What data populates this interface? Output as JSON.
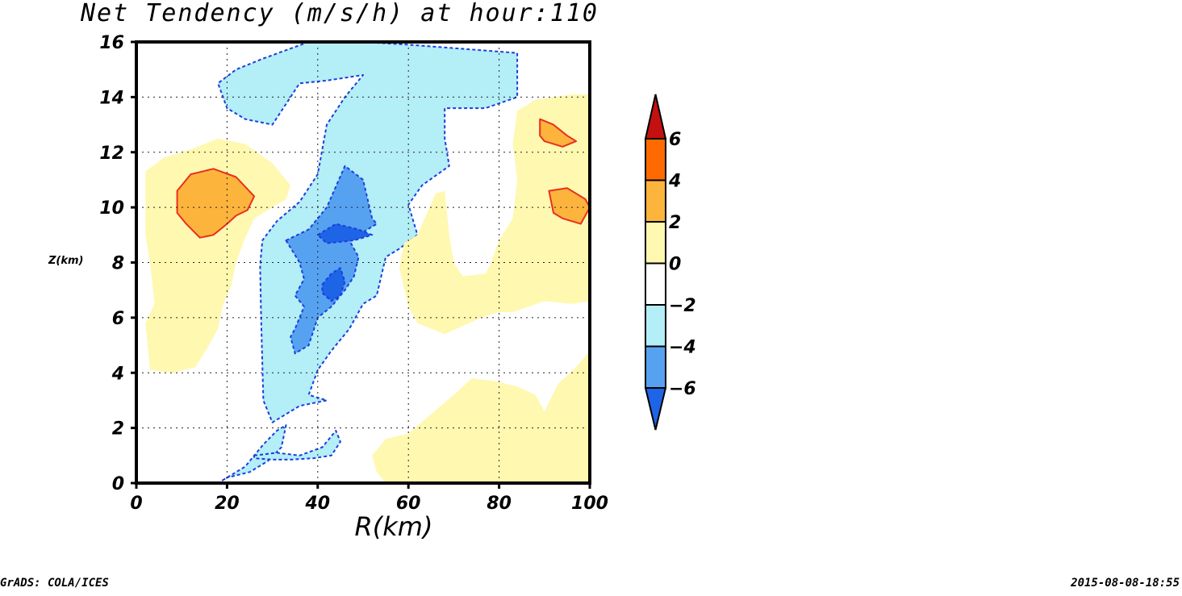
{
  "chart_data": {
    "type": "contour",
    "title": "Net Tendency (m/s/h) at hour:110",
    "xlabel": "R(km)",
    "ylabel": "Z(km)",
    "xlim": [
      0,
      100
    ],
    "ylim": [
      0,
      16
    ],
    "xticks": [
      "0",
      "20",
      "40",
      "60",
      "80",
      "100"
    ],
    "yticks": [
      "0",
      "2",
      "4",
      "6",
      "8",
      "10",
      "12",
      "14",
      "16"
    ],
    "grid": true,
    "colorbar": {
      "labels": [
        "6",
        "4",
        "2",
        "0",
        "−2",
        "−4",
        "−6"
      ],
      "bins": [
        {
          "range": ">6",
          "color": "#c41010"
        },
        {
          "range": "4 to 6",
          "color": "#ff6a00"
        },
        {
          "range": "2 to 4",
          "color": "#fcb43c"
        },
        {
          "range": "0 to 2",
          "color": "#fff8b0"
        },
        {
          "range": "-2 to 0",
          "color": "#ffffff"
        },
        {
          "range": "-4 to -2",
          "color": "#b4eef6"
        },
        {
          "range": "-6 to -4",
          "color": "#56a2f0"
        },
        {
          "range": "<-6",
          "color": "#1e64e6"
        }
      ]
    },
    "regions": [
      {
        "name": "upper-negative-plume",
        "level": "-4 to -2",
        "color": "#b4eef6",
        "points": [
          [
            38,
            16
          ],
          [
            50,
            16
          ],
          [
            60,
            15.9
          ],
          [
            84,
            15.6
          ],
          [
            84,
            14
          ],
          [
            77,
            13.6
          ],
          [
            68,
            13.6
          ],
          [
            68,
            12.5
          ],
          [
            69,
            11.5
          ],
          [
            63,
            10.8
          ],
          [
            60,
            10.1
          ],
          [
            62,
            9
          ],
          [
            58,
            8.5
          ],
          [
            55,
            8.2
          ],
          [
            53,
            6.8
          ],
          [
            50,
            6.5
          ],
          [
            47,
            5.6
          ],
          [
            43,
            4.8
          ],
          [
            40,
            4.1
          ],
          [
            38,
            3.2
          ],
          [
            42,
            3
          ],
          [
            36,
            2.8
          ],
          [
            33,
            2.5
          ],
          [
            30,
            2.2
          ],
          [
            28,
            3
          ],
          [
            27.5,
            6
          ],
          [
            27.3,
            7.9
          ],
          [
            27.8,
            8.8
          ],
          [
            31,
            9.5
          ],
          [
            36,
            10.2
          ],
          [
            40,
            11.2
          ],
          [
            42,
            13
          ],
          [
            46,
            14
          ],
          [
            50,
            14.8
          ],
          [
            42,
            14.6
          ],
          [
            36,
            14.5
          ],
          [
            30,
            13
          ],
          [
            24,
            13.2
          ],
          [
            20,
            13.6
          ],
          [
            18,
            14.5
          ],
          [
            22,
            15
          ],
          [
            28,
            15.4
          ]
        ]
      },
      {
        "name": "mid-negative-core",
        "level": "-6 to -4",
        "color": "#56a2f0",
        "points": [
          [
            33,
            8.8
          ],
          [
            38,
            9.2
          ],
          [
            42,
            10
          ],
          [
            46,
            11.5
          ],
          [
            50,
            11
          ],
          [
            52,
            9.6
          ],
          [
            53,
            9.4
          ],
          [
            47,
            8.8
          ],
          [
            49,
            8.2
          ],
          [
            48,
            7.5
          ],
          [
            46,
            7
          ],
          [
            43,
            6.4
          ],
          [
            40,
            6
          ],
          [
            38,
            5
          ],
          [
            35,
            4.7
          ],
          [
            34,
            5.3
          ],
          [
            35,
            5.6
          ],
          [
            37,
            6.4
          ],
          [
            35,
            6.8
          ],
          [
            37,
            7.4
          ],
          [
            36,
            8
          ]
        ]
      },
      {
        "name": "mid-strong-core",
        "level": "<-6",
        "color": "#1e64e6",
        "points": [
          [
            40,
            9
          ],
          [
            44,
            9.4
          ],
          [
            49,
            9.2
          ],
          [
            52,
            9
          ],
          [
            48,
            8.8
          ],
          [
            42,
            8.7
          ]
        ]
      },
      {
        "name": "lower-strong-core",
        "level": "<-6",
        "color": "#1e64e6",
        "points": [
          [
            41,
            7.2
          ],
          [
            43,
            7.6
          ],
          [
            45,
            7.8
          ],
          [
            46,
            7.3
          ],
          [
            45,
            6.8
          ],
          [
            43,
            6.6
          ],
          [
            41,
            6.9
          ]
        ]
      },
      {
        "name": "upper-left-positive",
        "level": "0 to 2",
        "color": "#fff8b0",
        "points": [
          [
            2,
            11.3
          ],
          [
            6,
            11.8
          ],
          [
            12,
            12.1
          ],
          [
            18,
            12.5
          ],
          [
            24,
            12.3
          ],
          [
            30,
            11.6
          ],
          [
            34,
            10.8
          ],
          [
            33,
            10.3
          ],
          [
            29,
            9.9
          ],
          [
            26,
            9.6
          ],
          [
            24,
            8.9
          ],
          [
            22,
            8
          ],
          [
            21,
            7.2
          ],
          [
            19,
            6.4
          ],
          [
            18,
            5.6
          ],
          [
            16,
            5
          ],
          [
            13,
            4.2
          ],
          [
            8,
            4
          ],
          [
            3,
            4.1
          ],
          [
            2,
            5.8
          ],
          [
            4,
            6.5
          ],
          [
            3,
            8
          ],
          [
            2,
            9
          ]
        ]
      },
      {
        "name": "upper-left-strong-positive",
        "level": "2 to 4",
        "color": "#fcb43c",
        "points": [
          [
            9,
            10.6
          ],
          [
            12,
            11.2
          ],
          [
            17,
            11.4
          ],
          [
            22,
            11.1
          ],
          [
            26,
            10.4
          ],
          [
            24.5,
            9.9
          ],
          [
            22,
            9.7
          ],
          [
            20,
            9.4
          ],
          [
            17,
            9
          ],
          [
            14,
            8.9
          ],
          [
            11,
            9.4
          ],
          [
            9,
            9.8
          ]
        ]
      },
      {
        "name": "right-positive",
        "level": "0 to 2",
        "color": "#fff8b0",
        "points": [
          [
            100,
            14.1
          ],
          [
            96,
            14.1
          ],
          [
            88,
            13.9
          ],
          [
            84,
            13.5
          ],
          [
            83,
            12.3
          ],
          [
            84,
            11
          ],
          [
            83,
            9.6
          ],
          [
            80,
            8.8
          ],
          [
            78,
            7.9
          ],
          [
            77,
            7.6
          ],
          [
            72,
            7.5
          ],
          [
            70,
            8
          ],
          [
            69,
            9
          ],
          [
            68,
            10.6
          ],
          [
            66,
            10.5
          ],
          [
            62,
            9
          ],
          [
            59,
            8.7
          ],
          [
            58,
            7.8
          ],
          [
            60,
            6.4
          ],
          [
            62,
            5.8
          ],
          [
            68,
            5.4
          ],
          [
            72,
            5.7
          ],
          [
            76,
            6
          ],
          [
            80,
            6.2
          ],
          [
            83,
            6.2
          ],
          [
            90,
            6.6
          ],
          [
            96,
            6.5
          ],
          [
            100,
            6.6
          ]
        ]
      },
      {
        "name": "right-strong-positive-upper",
        "level": "2 to 4",
        "color": "#fcb43c",
        "points": [
          [
            89,
            13.2
          ],
          [
            92,
            13
          ],
          [
            95,
            12.6
          ],
          [
            97,
            12.4
          ],
          [
            94,
            12.2
          ],
          [
            90,
            12.4
          ],
          [
            89,
            12.6
          ]
        ]
      },
      {
        "name": "right-strong-positive-lower",
        "level": "2 to 4",
        "color": "#fcb43c",
        "points": [
          [
            91,
            10.6
          ],
          [
            95,
            10.7
          ],
          [
            99,
            10.3
          ],
          [
            100,
            10
          ],
          [
            98,
            9.4
          ],
          [
            94,
            9.6
          ],
          [
            92,
            9.8
          ]
        ]
      },
      {
        "name": "lower-right-positive",
        "level": "0 to 2",
        "color": "#fff8b0",
        "points": [
          [
            100,
            4.8
          ],
          [
            97,
            4.2
          ],
          [
            93,
            3.6
          ],
          [
            90,
            2.6
          ],
          [
            88,
            3.2
          ],
          [
            84,
            3.5
          ],
          [
            79,
            3.7
          ],
          [
            74,
            3.8
          ],
          [
            70,
            3.2
          ],
          [
            65,
            2.5
          ],
          [
            60,
            1.8
          ],
          [
            55,
            1.6
          ],
          [
            52,
            1
          ],
          [
            53,
            0.4
          ],
          [
            55,
            0
          ],
          [
            100,
            0
          ]
        ]
      },
      {
        "name": "lower-negative-band-1",
        "level": "-4 to -2",
        "color": "#b4eef6",
        "points": [
          [
            19,
            0.1
          ],
          [
            24,
            0.6
          ],
          [
            28,
            1.4
          ],
          [
            31,
            1.9
          ],
          [
            33,
            2.1
          ],
          [
            32,
            1.3
          ],
          [
            29,
            0.8
          ],
          [
            25,
            0.4
          ],
          [
            20,
            0.2
          ]
        ]
      },
      {
        "name": "lower-negative-band-2",
        "level": "-4 to -2",
        "color": "#b4eef6",
        "points": [
          [
            26,
            1
          ],
          [
            31,
            1.1
          ],
          [
            36,
            1
          ],
          [
            41,
            1.3
          ],
          [
            44,
            1.9
          ],
          [
            45,
            1.5
          ],
          [
            43,
            1
          ],
          [
            39,
            0.9
          ],
          [
            34,
            0.85
          ],
          [
            30,
            0.85
          ],
          [
            26,
            0.9
          ]
        ]
      }
    ]
  },
  "footer": {
    "left": "GrADS: COLA/ICES",
    "right": "2015-08-08-18:55"
  }
}
